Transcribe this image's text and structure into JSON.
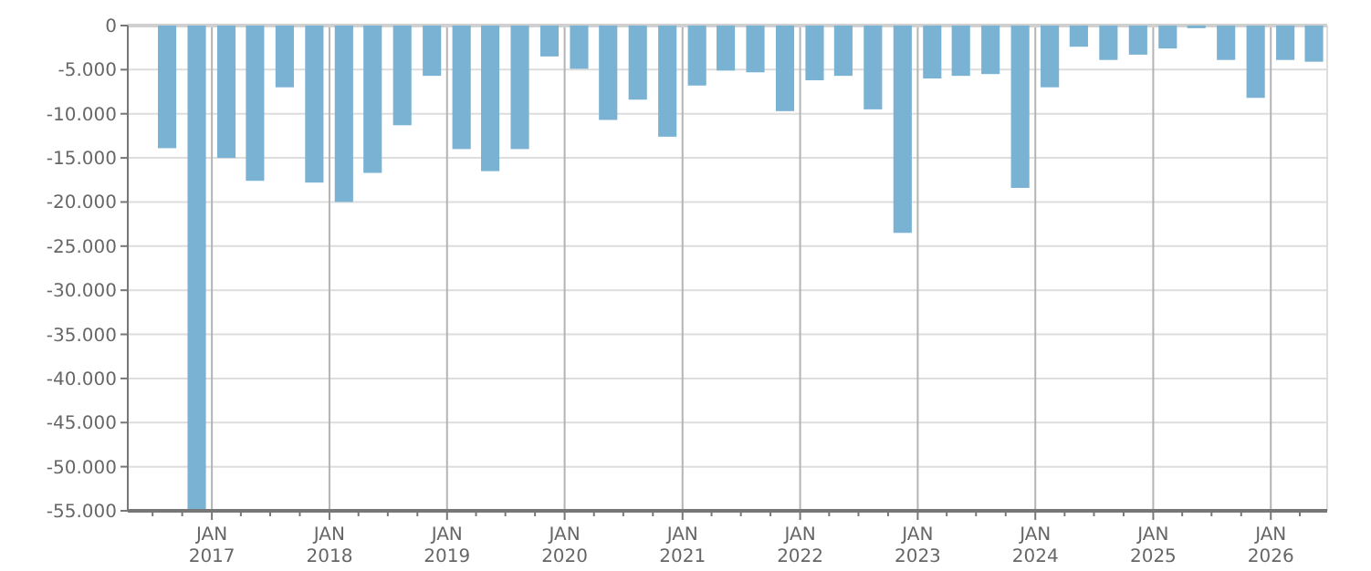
{
  "chart_data": {
    "type": "bar",
    "color": "#7ab2d4",
    "grid": true,
    "x": [
      "2016-08-15",
      "2016-11-15",
      "2017-02-15",
      "2017-05-15",
      "2017-08-15",
      "2017-11-15",
      "2018-02-15",
      "2018-05-15",
      "2018-08-15",
      "2018-11-15",
      "2019-02-15",
      "2019-05-15",
      "2019-08-15",
      "2019-11-15",
      "2020-02-15",
      "2020-05-15",
      "2020-08-15",
      "2020-11-15",
      "2021-02-15",
      "2021-05-15",
      "2021-08-15",
      "2021-11-15",
      "2022-02-15",
      "2022-05-15",
      "2022-08-15",
      "2022-11-15",
      "2023-02-15",
      "2023-05-15",
      "2023-08-15",
      "2023-11-15",
      "2024-02-15",
      "2024-05-15",
      "2024-08-15",
      "2024-11-15",
      "2025-02-15",
      "2025-05-15",
      "2025-08-15",
      "2025-11-15",
      "2026-02-15",
      "2026-05-15"
    ],
    "values": [
      -13900,
      -55000,
      -15000,
      -17600,
      -7000,
      -17800,
      -20000,
      -16700,
      -11300,
      -5700,
      -14000,
      -16500,
      -14000,
      -3500,
      -4900,
      -10700,
      -8400,
      -12600,
      -6800,
      -5100,
      -5300,
      -9700,
      -6200,
      -5700,
      -9500,
      -23500,
      -6000,
      -5700,
      -5500,
      -18400,
      -7000,
      -2400,
      -3900,
      -3300,
      -2600,
      -300,
      -3900,
      -8200,
      -3900,
      -4100
    ],
    "xlim": [
      "2016-04-15",
      "2026-06-25"
    ],
    "xticks": [
      {
        "value": "2016-07-01",
        "label": null
      },
      {
        "value": "2016-10-01",
        "label": null
      },
      {
        "value": "2017-01-01",
        "label": "JAN 2017"
      },
      {
        "value": "2017-04-01",
        "label": null
      },
      {
        "value": "2017-07-01",
        "label": null
      },
      {
        "value": "2017-10-01",
        "label": null
      },
      {
        "value": "2018-01-01",
        "label": "JAN 2018"
      },
      {
        "value": "2018-04-01",
        "label": null
      },
      {
        "value": "2018-07-01",
        "label": null
      },
      {
        "value": "2018-10-01",
        "label": null
      },
      {
        "value": "2019-01-01",
        "label": "JAN 2019"
      },
      {
        "value": "2019-04-01",
        "label": null
      },
      {
        "value": "2019-07-01",
        "label": null
      },
      {
        "value": "2019-10-01",
        "label": null
      },
      {
        "value": "2020-01-01",
        "label": "JAN 2020"
      },
      {
        "value": "2020-04-01",
        "label": null
      },
      {
        "value": "2020-07-01",
        "label": null
      },
      {
        "value": "2020-10-01",
        "label": null
      },
      {
        "value": "2021-01-01",
        "label": "JAN 2021"
      },
      {
        "value": "2021-04-01",
        "label": null
      },
      {
        "value": "2021-07-01",
        "label": null
      },
      {
        "value": "2021-10-01",
        "label": null
      },
      {
        "value": "2022-01-01",
        "label": "JAN 2022"
      },
      {
        "value": "2022-04-01",
        "label": null
      },
      {
        "value": "2022-07-01",
        "label": null
      },
      {
        "value": "2022-10-01",
        "label": null
      },
      {
        "value": "2023-01-01",
        "label": "JAN 2023"
      },
      {
        "value": "2023-04-01",
        "label": null
      },
      {
        "value": "2023-07-01",
        "label": null
      },
      {
        "value": "2023-10-01",
        "label": null
      },
      {
        "value": "2024-01-01",
        "label": "JAN 2024"
      },
      {
        "value": "2024-04-01",
        "label": null
      },
      {
        "value": "2024-07-01",
        "label": null
      },
      {
        "value": "2024-10-01",
        "label": null
      },
      {
        "value": "2025-01-01",
        "label": "JAN 2025"
      },
      {
        "value": "2025-04-01",
        "label": null
      },
      {
        "value": "2025-07-01",
        "label": null
      },
      {
        "value": "2025-10-01",
        "label": null
      },
      {
        "value": "2026-01-01",
        "label": "JAN 2026"
      },
      {
        "value": "2026-04-01",
        "label": null
      }
    ],
    "ylim": [
      -55000,
      0
    ],
    "yticks": [
      {
        "value": -55000,
        "label": "-55.000"
      },
      {
        "value": -50000,
        "label": "-50.000"
      },
      {
        "value": -45000,
        "label": "-45.000"
      },
      {
        "value": -40000,
        "label": "-40.000"
      },
      {
        "value": -35000,
        "label": "-35.000"
      },
      {
        "value": -30000,
        "label": "-30.000"
      },
      {
        "value": -25000,
        "label": "-25.000"
      },
      {
        "value": -20000,
        "label": "-20.000"
      },
      {
        "value": -15000,
        "label": "-15.000"
      },
      {
        "value": -10000,
        "label": "-10.000"
      },
      {
        "value": -5000,
        "label": "-5.000"
      },
      0
    ]
  }
}
